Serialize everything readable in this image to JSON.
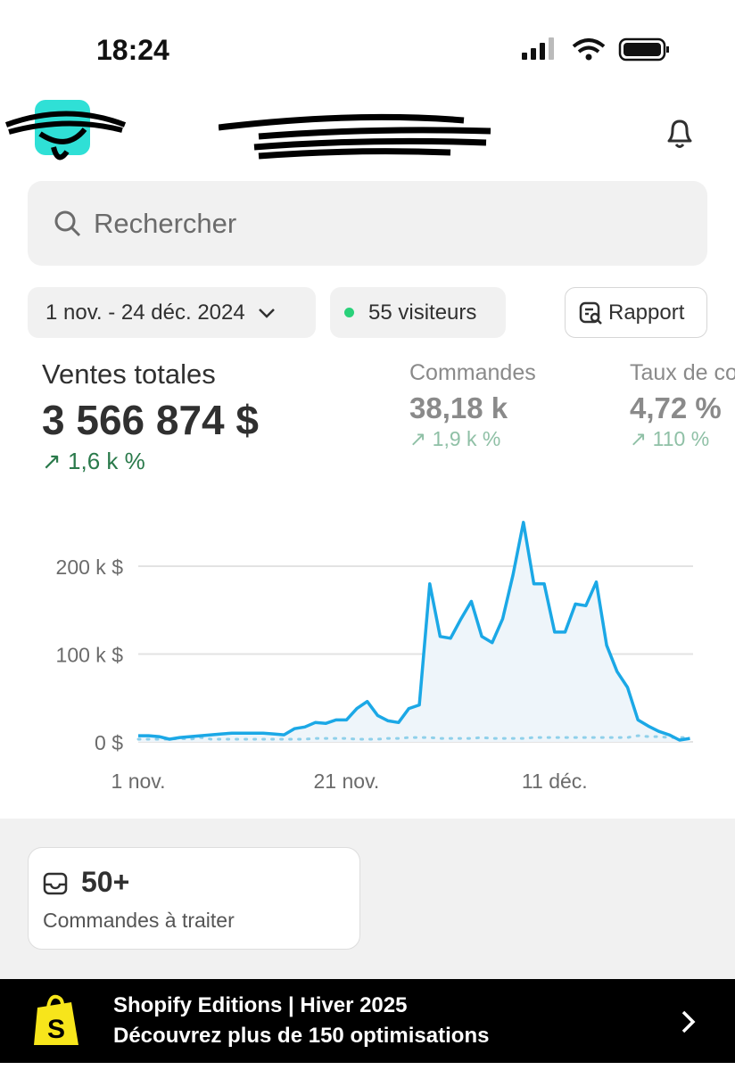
{
  "status_bar": {
    "time": "18:24"
  },
  "search": {
    "placeholder": "Rechercher"
  },
  "filters": {
    "date_range": "1 nov. - 24 déc. 2024",
    "visitors": "55 visiteurs",
    "report": "Rapport"
  },
  "metrics": [
    {
      "label": "Ventes totales",
      "value": "3 566 874 $",
      "delta": "1,6 k %"
    },
    {
      "label": "Commandes",
      "value": "38,18 k",
      "delta": "1,9 k %"
    },
    {
      "label": "Taux de co",
      "value": "4,72 %",
      "delta": "110 %"
    }
  ],
  "chart_data": {
    "type": "line",
    "y_ticks": [
      "0 $",
      "100 k $",
      "200 k $"
    ],
    "x_ticks": [
      "1 nov.",
      "21 nov.",
      "11 déc."
    ],
    "ylim": [
      0,
      250000
    ],
    "x_range": [
      "2024-11-01",
      "2024-12-24"
    ],
    "grid": true,
    "colors": {
      "current": "#1ba8e6",
      "previous": "#8fd0ea"
    },
    "series": [
      {
        "values": [
          7,
          7,
          6,
          3,
          5,
          6,
          7,
          8,
          9,
          10,
          10,
          10,
          10,
          9,
          8,
          15,
          17,
          22,
          21,
          25,
          25,
          38,
          46,
          30,
          24,
          22,
          38,
          42,
          180,
          120,
          118,
          140,
          160,
          120,
          113,
          140,
          190,
          250,
          180,
          180,
          125,
          125,
          157,
          155,
          182,
          110,
          80,
          62,
          25,
          18,
          12,
          8,
          2,
          4
        ],
        "unit": "k $",
        "style": "solid"
      },
      {
        "values": [
          3,
          3,
          3,
          3,
          4,
          3,
          5,
          3,
          3,
          3,
          3,
          3,
          3,
          3,
          3,
          3,
          3,
          4,
          4,
          4,
          4,
          3,
          3,
          3,
          4,
          4,
          5,
          5,
          5,
          4,
          4,
          4,
          4,
          5,
          4,
          4,
          4,
          4,
          5,
          5,
          5,
          5,
          5,
          5,
          5,
          5,
          5,
          5,
          7,
          6,
          6,
          5,
          5,
          5
        ],
        "unit": "k $",
        "style": "dotted"
      }
    ]
  },
  "orders_card": {
    "count": "50+",
    "label": "Commandes à traiter"
  },
  "banner": {
    "title": "Shopify Editions | Hiver 2025",
    "subtitle": "Découvrez plus de 150 optimisations"
  }
}
